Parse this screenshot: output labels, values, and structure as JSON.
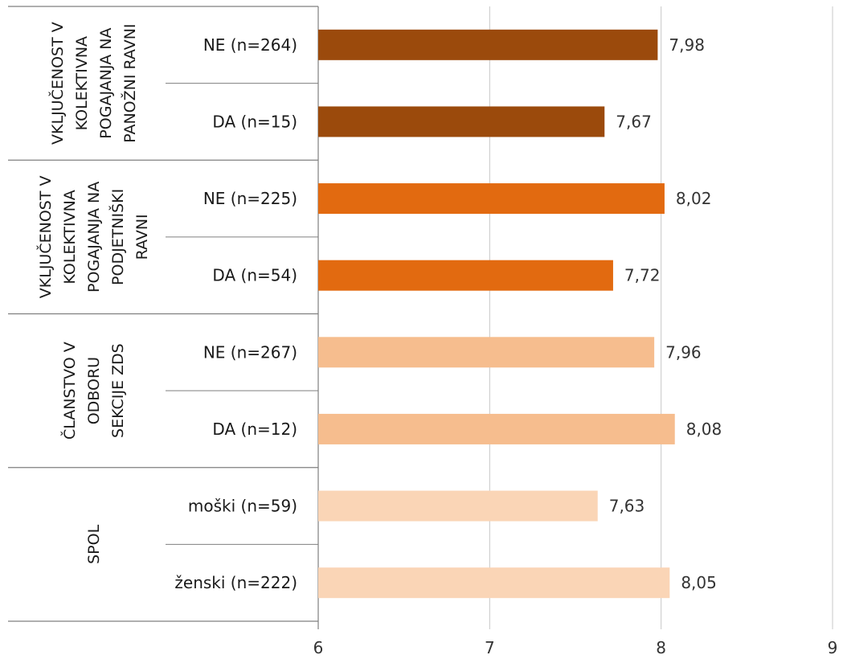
{
  "chart_data": {
    "type": "bar",
    "orientation": "horizontal",
    "xlim": [
      6,
      9
    ],
    "x_ticks": [
      "6",
      "7",
      "8",
      "9"
    ],
    "grid": "vertical",
    "legend": "none",
    "groups": [
      {
        "label_lines": [
          "VKLJUČENOST V",
          "KOLEKTIVNA",
          "POGAJANJA NA",
          "PANOŽNI RAVNI"
        ],
        "color": "#9B4A0C",
        "categories": [
          "NE (n=264)",
          "DA (n=15)"
        ],
        "values": [
          7.98,
          7.67
        ],
        "value_labels": [
          "7,98",
          "7,67"
        ]
      },
      {
        "label_lines": [
          "VKLJUČENOST V",
          "KOLEKTIVNA",
          "POGAJANJA NA",
          "PODJETNIŠKI",
          "RAVNI"
        ],
        "color": "#E26A10",
        "categories": [
          "NE (n=225)",
          "DA (n=54)"
        ],
        "values": [
          8.02,
          7.72
        ],
        "value_labels": [
          "8,02",
          "7,72"
        ]
      },
      {
        "label_lines": [
          "ČLANSTVO V",
          "ODBORU",
          "SEKCIJE ZDS"
        ],
        "color": "#F6BD8E",
        "categories": [
          "NE (n=267)",
          "DA (n=12)"
        ],
        "values": [
          7.96,
          8.08
        ],
        "value_labels": [
          "7,96",
          "8,08"
        ]
      },
      {
        "label_lines": [
          "SPOL"
        ],
        "color": "#FAD5B6",
        "categories": [
          "moški (n=59)",
          "ženski (n=222)"
        ],
        "values": [
          7.63,
          8.05
        ],
        "value_labels": [
          "7,63",
          "8,05"
        ]
      }
    ]
  }
}
